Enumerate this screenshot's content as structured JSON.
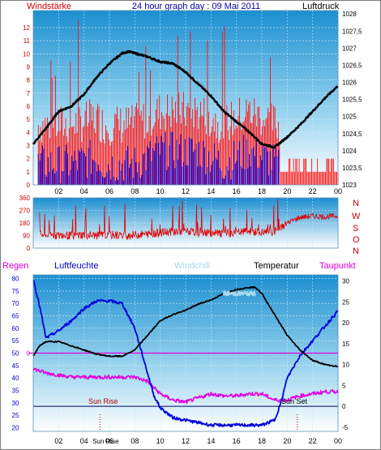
{
  "title": "24 hour graph day : 09 Mai 2011",
  "colors": {
    "wind": "#e00000",
    "gust": "#ff1010",
    "direction": "#e00000",
    "humidity": "#0000dd",
    "temperature": "#000000",
    "dewpoint": "#e000e0",
    "windchill": "#a8d8ec",
    "rain": "#e000e0",
    "pressure": "#000000",
    "axis_left": "#cc0000",
    "axis_right": "#000000",
    "axis_blue": "#0000cc"
  },
  "labels": {
    "windstaerke": "Windstärke",
    "luftdruck": "Luftdruck",
    "regen": "Regen",
    "luftfeuchte": "Luftfeuchte",
    "windchill": "Windchill",
    "temperatur": "Temperatur",
    "taupunkt": "Taupunkt",
    "sun_rise": "Sun Rise",
    "sun_set": "Sun Set",
    "sun_rise_tick": "Sun Rise",
    "compass": [
      "N",
      "W",
      "S",
      "O",
      "N"
    ]
  },
  "chart_data": [
    {
      "type": "line",
      "name": "wind_pressure",
      "x_ticks": [
        "02",
        "04",
        "06",
        "08",
        "10",
        "12",
        "14",
        "16",
        "18",
        "20",
        "22",
        "00"
      ],
      "xlim": [
        0,
        24
      ],
      "left_axis": {
        "label": "Windstärke",
        "ticks": [
          "0",
          "1",
          "2",
          "3",
          "4",
          "5",
          "6",
          "7",
          "8",
          "9",
          "10",
          "11",
          "12"
        ],
        "ylim": [
          0,
          13.3
        ]
      },
      "right_axis": {
        "label": "Luftdruck",
        "ticks": [
          "1023",
          "1023,5",
          "1024",
          "1024,5",
          "1025",
          "1025,5",
          "1026",
          "1026,5",
          "1027",
          "1027,5",
          "1028"
        ],
        "ylim": [
          1023,
          1028.1
        ]
      },
      "series": [
        {
          "key": "pressure",
          "x": [
            0,
            1,
            2,
            3,
            4,
            5,
            6,
            7,
            7.5,
            8,
            9,
            10,
            11,
            12,
            13,
            14,
            15,
            16,
            17,
            18,
            19,
            20,
            21,
            22,
            23,
            24
          ],
          "y": [
            1024.2,
            1024.65,
            1025.15,
            1025.3,
            1025.65,
            1026.15,
            1026.55,
            1026.85,
            1026.9,
            1026.85,
            1026.75,
            1026.6,
            1026.55,
            1026.3,
            1025.95,
            1025.6,
            1025.15,
            1024.85,
            1024.55,
            1024.2,
            1024.1,
            1024.4,
            1024.75,
            1025.15,
            1025.55,
            1025.9
          ]
        },
        {
          "key": "wind_avg",
          "x": [
            0,
            1,
            3,
            5,
            5.5,
            8,
            10,
            11,
            13,
            15,
            17,
            19.3,
            19.4,
            20,
            20.5,
            22,
            24
          ],
          "y": [
            1,
            1,
            1,
            1.5,
            1,
            1,
            2,
            2,
            2,
            1,
            2,
            1,
            0,
            0,
            0,
            0,
            0
          ]
        }
      ]
    },
    {
      "type": "line",
      "name": "wind_direction",
      "x_ticks": [
        "02",
        "04",
        "06",
        "08",
        "10",
        "12",
        "14",
        "16",
        "18",
        "20",
        "22",
        "00"
      ],
      "xlim": [
        0,
        24
      ],
      "left_axis": {
        "ticks": [
          "0",
          "90",
          "180",
          "270",
          "360"
        ],
        "ylim": [
          0,
          360
        ]
      },
      "right_axis": {
        "ticks": [
          "N",
          "W",
          "S",
          "O",
          "N"
        ]
      },
      "series": [
        {
          "key": "direction",
          "x": [
            0,
            1,
            2,
            3,
            4,
            5,
            6,
            7,
            8,
            9,
            10,
            11,
            12,
            13,
            14,
            15,
            16,
            17,
            18,
            19,
            20,
            20.5,
            21,
            22,
            23,
            24
          ],
          "y": [
            100,
            95,
            90,
            90,
            95,
            90,
            95,
            90,
            95,
            100,
            110,
            120,
            120,
            110,
            110,
            100,
            110,
            120,
            110,
            120,
            180,
            200,
            220,
            230,
            225,
            230
          ]
        }
      ]
    },
    {
      "type": "line",
      "name": "temp_humidity",
      "x_ticks": [
        "02",
        "04",
        "06",
        "08",
        "10",
        "12",
        "14",
        "16",
        "18",
        "20",
        "22",
        "00"
      ],
      "xlim": [
        0,
        24
      ],
      "left_axis": {
        "label": "Luftfeuchte",
        "ticks": [
          "20",
          "25",
          "30",
          "35",
          "40",
          "45",
          "50",
          "55",
          "60",
          "65",
          "70",
          "75",
          "80"
        ],
        "ylim": [
          18.5,
          81.5
        ]
      },
      "right_axis": {
        "label": "Temperatur",
        "ticks": [
          "-5",
          "0",
          "5",
          "10",
          "15",
          "20",
          "25",
          "30"
        ],
        "ylim": [
          -6,
          31.5
        ]
      },
      "rain_axis": {
        "label": "Regen",
        "ticks": [
          "0"
        ]
      },
      "series": [
        {
          "key": "humidity",
          "x": [
            0,
            0.5,
            1,
            2,
            3,
            4,
            5,
            6,
            7,
            8,
            9,
            9.5,
            10,
            11,
            12,
            13,
            14,
            15,
            16,
            17,
            18,
            19,
            19.5,
            20,
            21,
            22,
            23,
            24
          ],
          "y": [
            80,
            69,
            56,
            59,
            63,
            68,
            71,
            71,
            70,
            60,
            42,
            33,
            28,
            24,
            23,
            22,
            21,
            21,
            21,
            21,
            21,
            23,
            30,
            40,
            49,
            55,
            61,
            67
          ]
        },
        {
          "key": "temperature",
          "x": [
            0,
            0.5,
            1,
            2,
            3,
            4,
            5,
            6,
            7,
            8,
            9,
            10,
            11,
            12,
            13,
            14,
            15,
            16,
            17,
            17.5,
            18,
            19,
            20,
            21,
            22,
            23,
            24
          ],
          "y": [
            12,
            14.5,
            15.5,
            15.5,
            14.5,
            13.5,
            12.5,
            12,
            12,
            13.5,
            17,
            20.5,
            22,
            23,
            24.5,
            25.5,
            27,
            28,
            28.5,
            28.5,
            27,
            22,
            17,
            13.5,
            11,
            10,
            9.5
          ]
        },
        {
          "key": "dewpoint",
          "x": [
            0,
            1,
            2,
            3,
            4,
            5,
            6,
            7,
            8,
            9,
            10,
            11,
            12,
            13,
            14,
            15,
            16,
            17,
            18,
            19,
            20,
            21,
            22,
            23,
            24
          ],
          "y": [
            9,
            8,
            7.5,
            7,
            7,
            7,
            7,
            7,
            7,
            6,
            3,
            1.5,
            1,
            2,
            3,
            2.5,
            2.5,
            3,
            3,
            1.5,
            1.5,
            2.5,
            3,
            3.5,
            3.5
          ]
        },
        {
          "key": "windchill",
          "x": [
            15,
            15.5,
            16,
            16.5,
            17,
            17.5
          ],
          "y": [
            27,
            27,
            27,
            27,
            27,
            27
          ]
        }
      ],
      "rain_value": 0
    }
  ]
}
